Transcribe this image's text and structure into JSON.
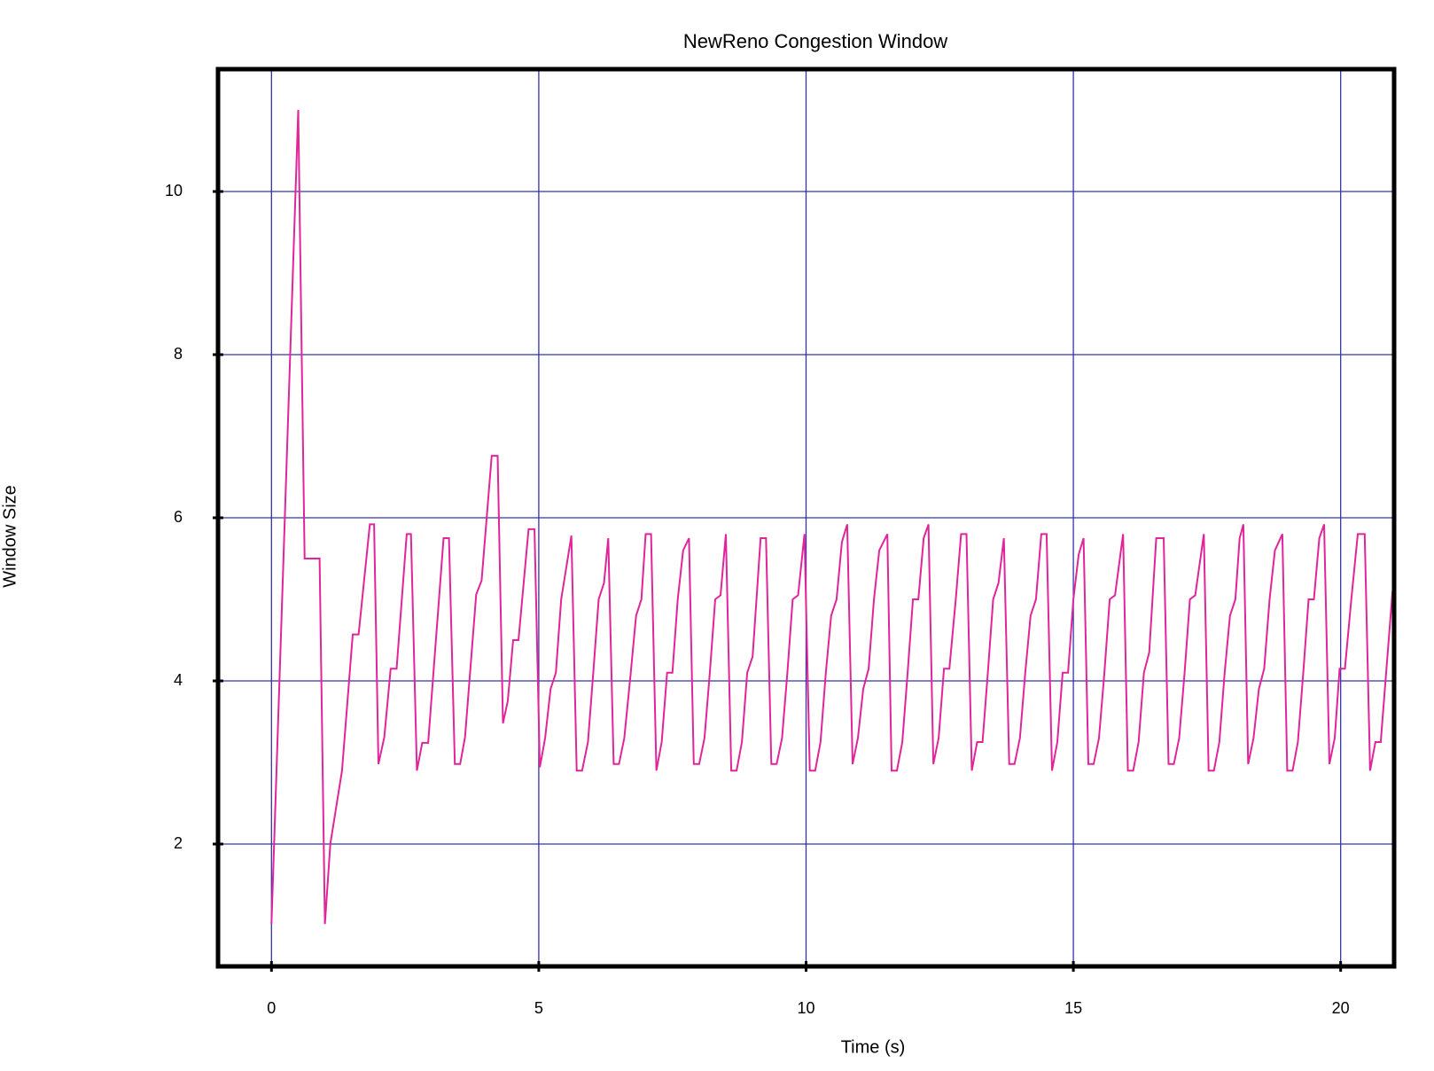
{
  "chart_data": {
    "type": "line",
    "title": "NewReno Congestion Window",
    "x_label": "Time (s)",
    "y_label": "Window Size",
    "color": "#e0259b",
    "grid": true,
    "grid_color": "#3333aa",
    "xlim": [
      -1,
      21
    ],
    "ylim": [
      0.5,
      11.5
    ],
    "xticks": [
      0,
      5,
      10,
      15,
      20
    ],
    "yticks": [
      2,
      4,
      6,
      8,
      10
    ],
    "x": [
      0,
      0.5,
      0.62,
      0.9,
      1.0,
      1.1,
      1.32,
      1.52,
      1.63,
      1.84,
      1.92,
      2.0,
      2.11,
      2.23,
      2.34,
      2.53,
      2.61,
      2.72,
      2.82,
      2.93,
      3.22,
      3.32,
      3.43,
      3.53,
      3.62,
      3.83,
      3.93,
      4.12,
      4.23,
      4.33,
      4.42,
      4.52,
      4.62,
      4.81,
      4.92,
      5.02,
      5.12,
      5.22,
      5.32,
      5.42,
      5.61,
      5.71,
      5.81,
      5.92,
      6.02,
      6.12,
      6.22,
      6.3,
      6.4,
      6.5,
      6.6,
      6.72,
      6.82,
      6.92,
      7.0,
      7.1,
      7.2,
      7.3,
      7.4,
      7.5,
      7.6,
      7.7,
      7.81,
      7.9,
      8.0,
      8.1,
      8.2,
      8.3,
      8.4,
      8.5,
      8.6,
      8.7,
      8.8,
      8.9,
      9.0,
      9.15,
      9.25,
      9.35,
      9.45,
      9.55,
      9.65,
      9.75,
      9.85,
      9.97,
      10.07,
      10.17,
      10.27,
      10.37,
      10.47,
      10.57,
      10.67,
      10.77,
      10.87,
      10.97,
      11.07,
      11.17,
      11.27,
      11.37,
      11.52,
      11.6,
      11.7,
      11.8,
      11.9,
      12.0,
      12.1,
      12.2,
      12.29,
      12.38,
      12.48,
      12.58,
      12.68,
      12.8,
      12.9,
      13.0,
      13.1,
      13.2,
      13.3,
      13.4,
      13.5,
      13.6,
      13.7,
      13.8,
      13.9,
      14.0,
      14.1,
      14.2,
      14.3,
      14.4,
      14.5,
      14.6,
      14.7,
      14.8,
      14.9,
      15.0,
      15.1,
      15.19,
      15.28,
      15.38,
      15.48,
      15.58,
      15.68,
      15.78,
      15.93,
      16.02,
      16.12,
      16.22,
      16.32,
      16.42,
      16.55,
      16.69,
      16.78,
      16.88,
      16.98,
      17.08,
      17.18,
      17.28,
      17.44,
      17.53,
      17.63,
      17.73,
      17.83,
      17.93,
      18.03,
      18.11,
      18.18,
      18.27,
      18.37,
      18.47,
      18.57,
      18.67,
      18.77,
      18.91,
      19.0,
      19.1,
      19.2,
      19.3,
      19.4,
      19.5,
      19.6,
      19.69,
      19.79,
      19.89,
      19.98,
      20.08,
      20.2,
      20.32,
      20.45,
      20.55,
      20.65,
      20.75,
      20.85,
      20.97
    ],
    "values": [
      1.02,
      11,
      5.5,
      5.5,
      1.02,
      2.0,
      2.9,
      4.57,
      4.57,
      5.92,
      5.92,
      2.98,
      3.31,
      4.15,
      4.15,
      5.8,
      5.8,
      2.9,
      3.24,
      3.24,
      5.75,
      5.75,
      2.98,
      2.98,
      3.31,
      5.06,
      5.23,
      6.76,
      6.76,
      3.48,
      3.75,
      4.5,
      4.5,
      5.86,
      5.86,
      2.94,
      3.3,
      3.9,
      4.1,
      5.0,
      5.78,
      2.9,
      2.9,
      3.25,
      4.1,
      5.0,
      5.2,
      5.75,
      2.98,
      2.98,
      3.3,
      4.1,
      4.8,
      5.0,
      5.8,
      5.8,
      2.9,
      3.25,
      4.1,
      4.1,
      5.0,
      5.6,
      5.75,
      2.98,
      2.98,
      3.3,
      4.1,
      5.0,
      5.05,
      5.8,
      2.9,
      2.9,
      3.25,
      4.1,
      4.3,
      5.75,
      5.75,
      2.98,
      2.98,
      3.3,
      4.1,
      5.0,
      5.05,
      5.8,
      2.9,
      2.9,
      3.25,
      4.1,
      4.8,
      5.0,
      5.7,
      5.92,
      2.98,
      3.3,
      3.9,
      4.15,
      5.0,
      5.6,
      5.8,
      2.9,
      2.9,
      3.25,
      4.1,
      5.0,
      5.0,
      5.75,
      5.92,
      2.98,
      3.3,
      4.15,
      4.15,
      5.0,
      5.8,
      5.8,
      2.9,
      3.25,
      3.25,
      4.1,
      5.0,
      5.2,
      5.75,
      2.98,
      2.98,
      3.3,
      4.1,
      4.8,
      5.0,
      5.8,
      5.8,
      2.9,
      3.25,
      4.1,
      4.1,
      5.0,
      5.55,
      5.75,
      2.98,
      2.98,
      3.3,
      4.1,
      5.0,
      5.05,
      5.8,
      2.9,
      2.9,
      3.25,
      4.1,
      4.35,
      5.75,
      5.75,
      2.98,
      2.98,
      3.3,
      4.1,
      5.0,
      5.05,
      5.8,
      2.9,
      2.9,
      3.25,
      4.1,
      4.8,
      5.0,
      5.75,
      5.92,
      2.98,
      3.3,
      3.9,
      4.15,
      5.0,
      5.6,
      5.8,
      2.9,
      2.9,
      3.25,
      4.1,
      5.0,
      5.0,
      5.75,
      5.92,
      2.98,
      3.3,
      4.15,
      4.15,
      5.0,
      5.8,
      5.8,
      2.9,
      3.25,
      3.25,
      4.1,
      5.1
    ]
  }
}
